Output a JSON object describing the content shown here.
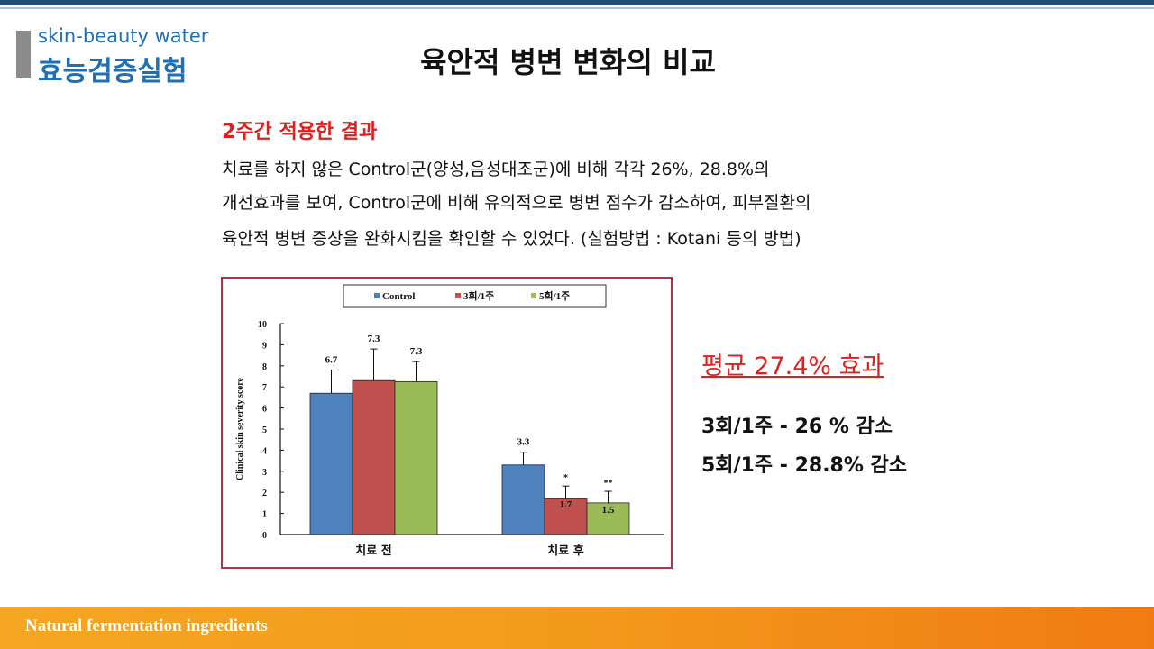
{
  "brand": {
    "line1": "skin-beauty water",
    "line2": "효능검증실험"
  },
  "title": "육안적 병변 변화의 비교",
  "result": {
    "heading": "2주간 적용한 결과",
    "lines": [
      "치료를 하지 않은 Control군(양성,음성대조군)에 비해 각각 26%, 28.8%의",
      "개선효과를 보여, Control군에 비해 유의적으로 병변 점수가 감소하여, 피부질환의",
      "육안적 병변 증상을 완화시킴을 확인할 수 있었다. (실험방법 : Kotani 등의 방법)"
    ]
  },
  "summary": {
    "average": "평균 27.4% 효과",
    "line1": "3회/1주 - 26 % 감소",
    "line2": "5회/1주 - 28.8% 감소"
  },
  "footer": "Natural fermentation ingredients",
  "colors": {
    "control": "#4f81bd",
    "three": "#c0504d",
    "five": "#9bbb59",
    "accent": "#e02020",
    "brand": "#1f6fb6"
  },
  "chart_data": {
    "type": "bar",
    "categories": [
      "치료 전",
      "치료 후"
    ],
    "series": [
      {
        "name": "Control",
        "values": [
          6.7,
          3.3
        ],
        "errors": [
          1.1,
          0.6
        ],
        "labels": [
          "6.7",
          "3.3"
        ],
        "marks": [
          "",
          ""
        ]
      },
      {
        "name": "3회/1주",
        "values": [
          7.3,
          1.7
        ],
        "errors": [
          1.5,
          0.6
        ],
        "labels": [
          "7.3",
          "1.7"
        ],
        "marks": [
          "",
          "*"
        ]
      },
      {
        "name": "5회/1주",
        "values": [
          7.25,
          1.5
        ],
        "errors": [
          0.95,
          0.55
        ],
        "labels": [
          "7.3",
          "1.5"
        ],
        "marks": [
          "",
          "**"
        ]
      }
    ],
    "ylabel": "Clinical skin severity score",
    "ylim": [
      0,
      10
    ],
    "yticks": [
      "0",
      "1",
      "2",
      "3",
      "4",
      "5",
      "6",
      "7",
      "8",
      "9",
      "10"
    ],
    "legend": "top"
  }
}
